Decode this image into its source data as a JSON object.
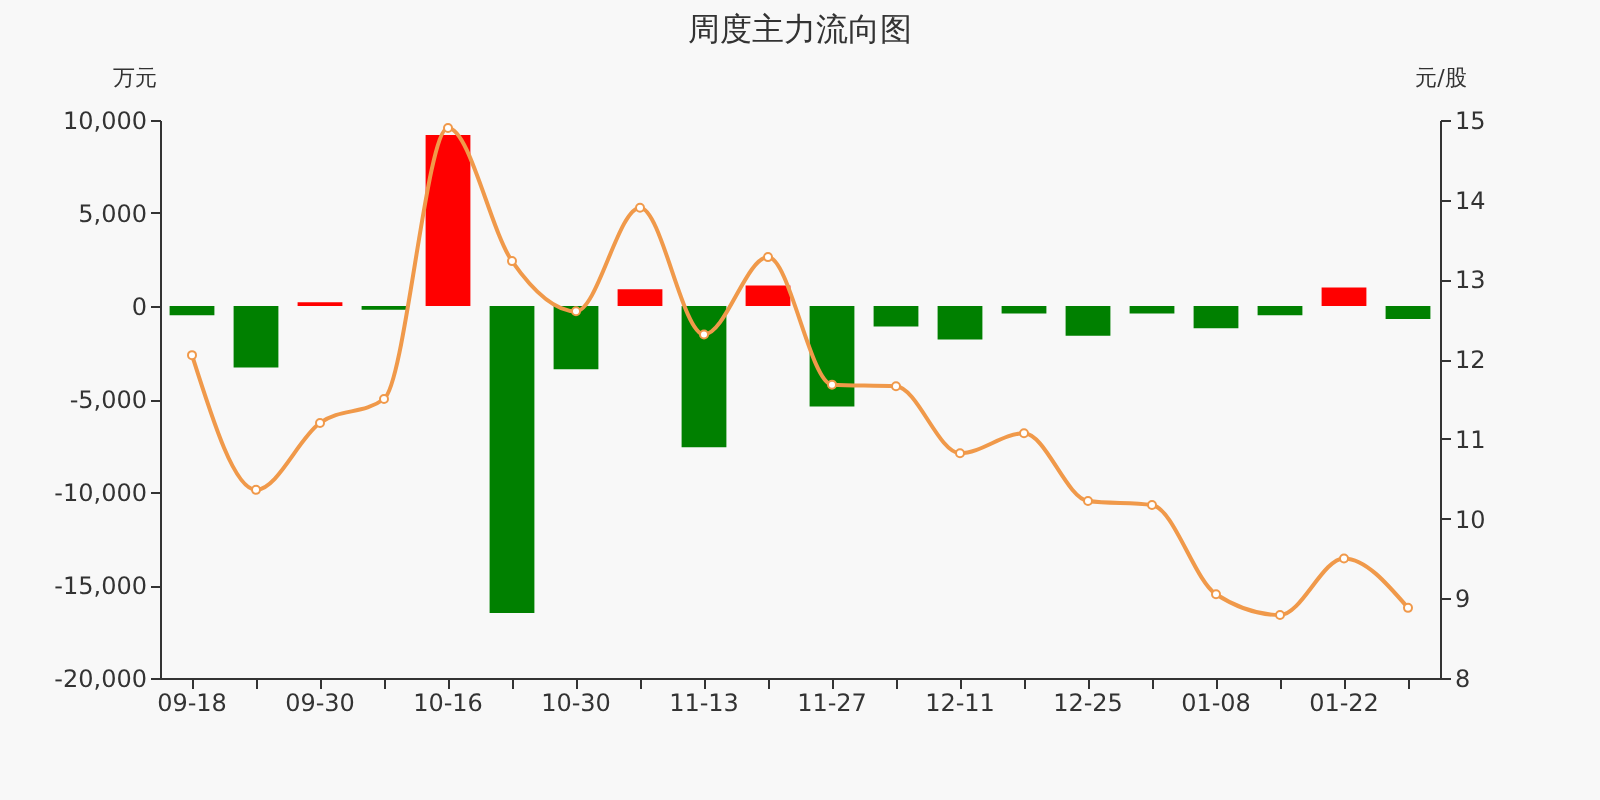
{
  "chart_data": {
    "type": "bar",
    "title": "周度主力流向图",
    "ylabel": "万元",
    "y2label": "元/股",
    "categories": [
      "09-18",
      null,
      "09-30",
      null,
      "10-16",
      null,
      "10-30",
      null,
      "11-13",
      null,
      "11-27",
      null,
      "12-11",
      null,
      "12-25",
      null,
      "01-08",
      null,
      "01-22",
      null
    ],
    "series": [
      {
        "values": [
          -500,
          -3300,
          200,
          -200,
          9200,
          -16500,
          -3400,
          900,
          -7600,
          1100,
          -5400,
          -1100,
          -1800,
          -400,
          -1600,
          -400,
          -1200,
          -500,
          1000,
          -700
        ],
        "colors": [
          "#008000",
          "#008000",
          "#ff0000",
          "#008000",
          "#ff0000",
          "#008000",
          "#008000",
          "#ff0000",
          "#008000",
          "#ff0000",
          "#008000",
          "#008000",
          "#008000",
          "#008000",
          "#008000",
          "#008000",
          "#008000",
          "#008000",
          "#ff0000",
          "#008000"
        ]
      },
      {
        "type": "line",
        "axis": "y2",
        "color": "#f0994a",
        "marker": "circle",
        "values": [
          12.05,
          10.36,
          11.2,
          11.5,
          14.9,
          13.23,
          12.6,
          13.9,
          12.31,
          13.28,
          11.68,
          11.66,
          10.82,
          11.07,
          10.22,
          10.17,
          9.05,
          8.79,
          9.5,
          8.88
        ]
      }
    ],
    "ylim": [
      -20000,
      10000
    ],
    "yticks": [
      {
        "value": -20000,
        "label": "-20,000"
      },
      {
        "value": -15000,
        "label": "-15,000"
      },
      {
        "value": -10000,
        "label": "-10,000"
      },
      {
        "value": -5000,
        "label": "-5,000"
      },
      0,
      {
        "value": 5000,
        "label": "5,000"
      },
      {
        "value": 10000,
        "label": "10,000"
      }
    ],
    "y2lim": [
      8,
      15
    ],
    "y2ticks": [
      8,
      9,
      10,
      11,
      12,
      13,
      14,
      15
    ],
    "grid": false
  }
}
